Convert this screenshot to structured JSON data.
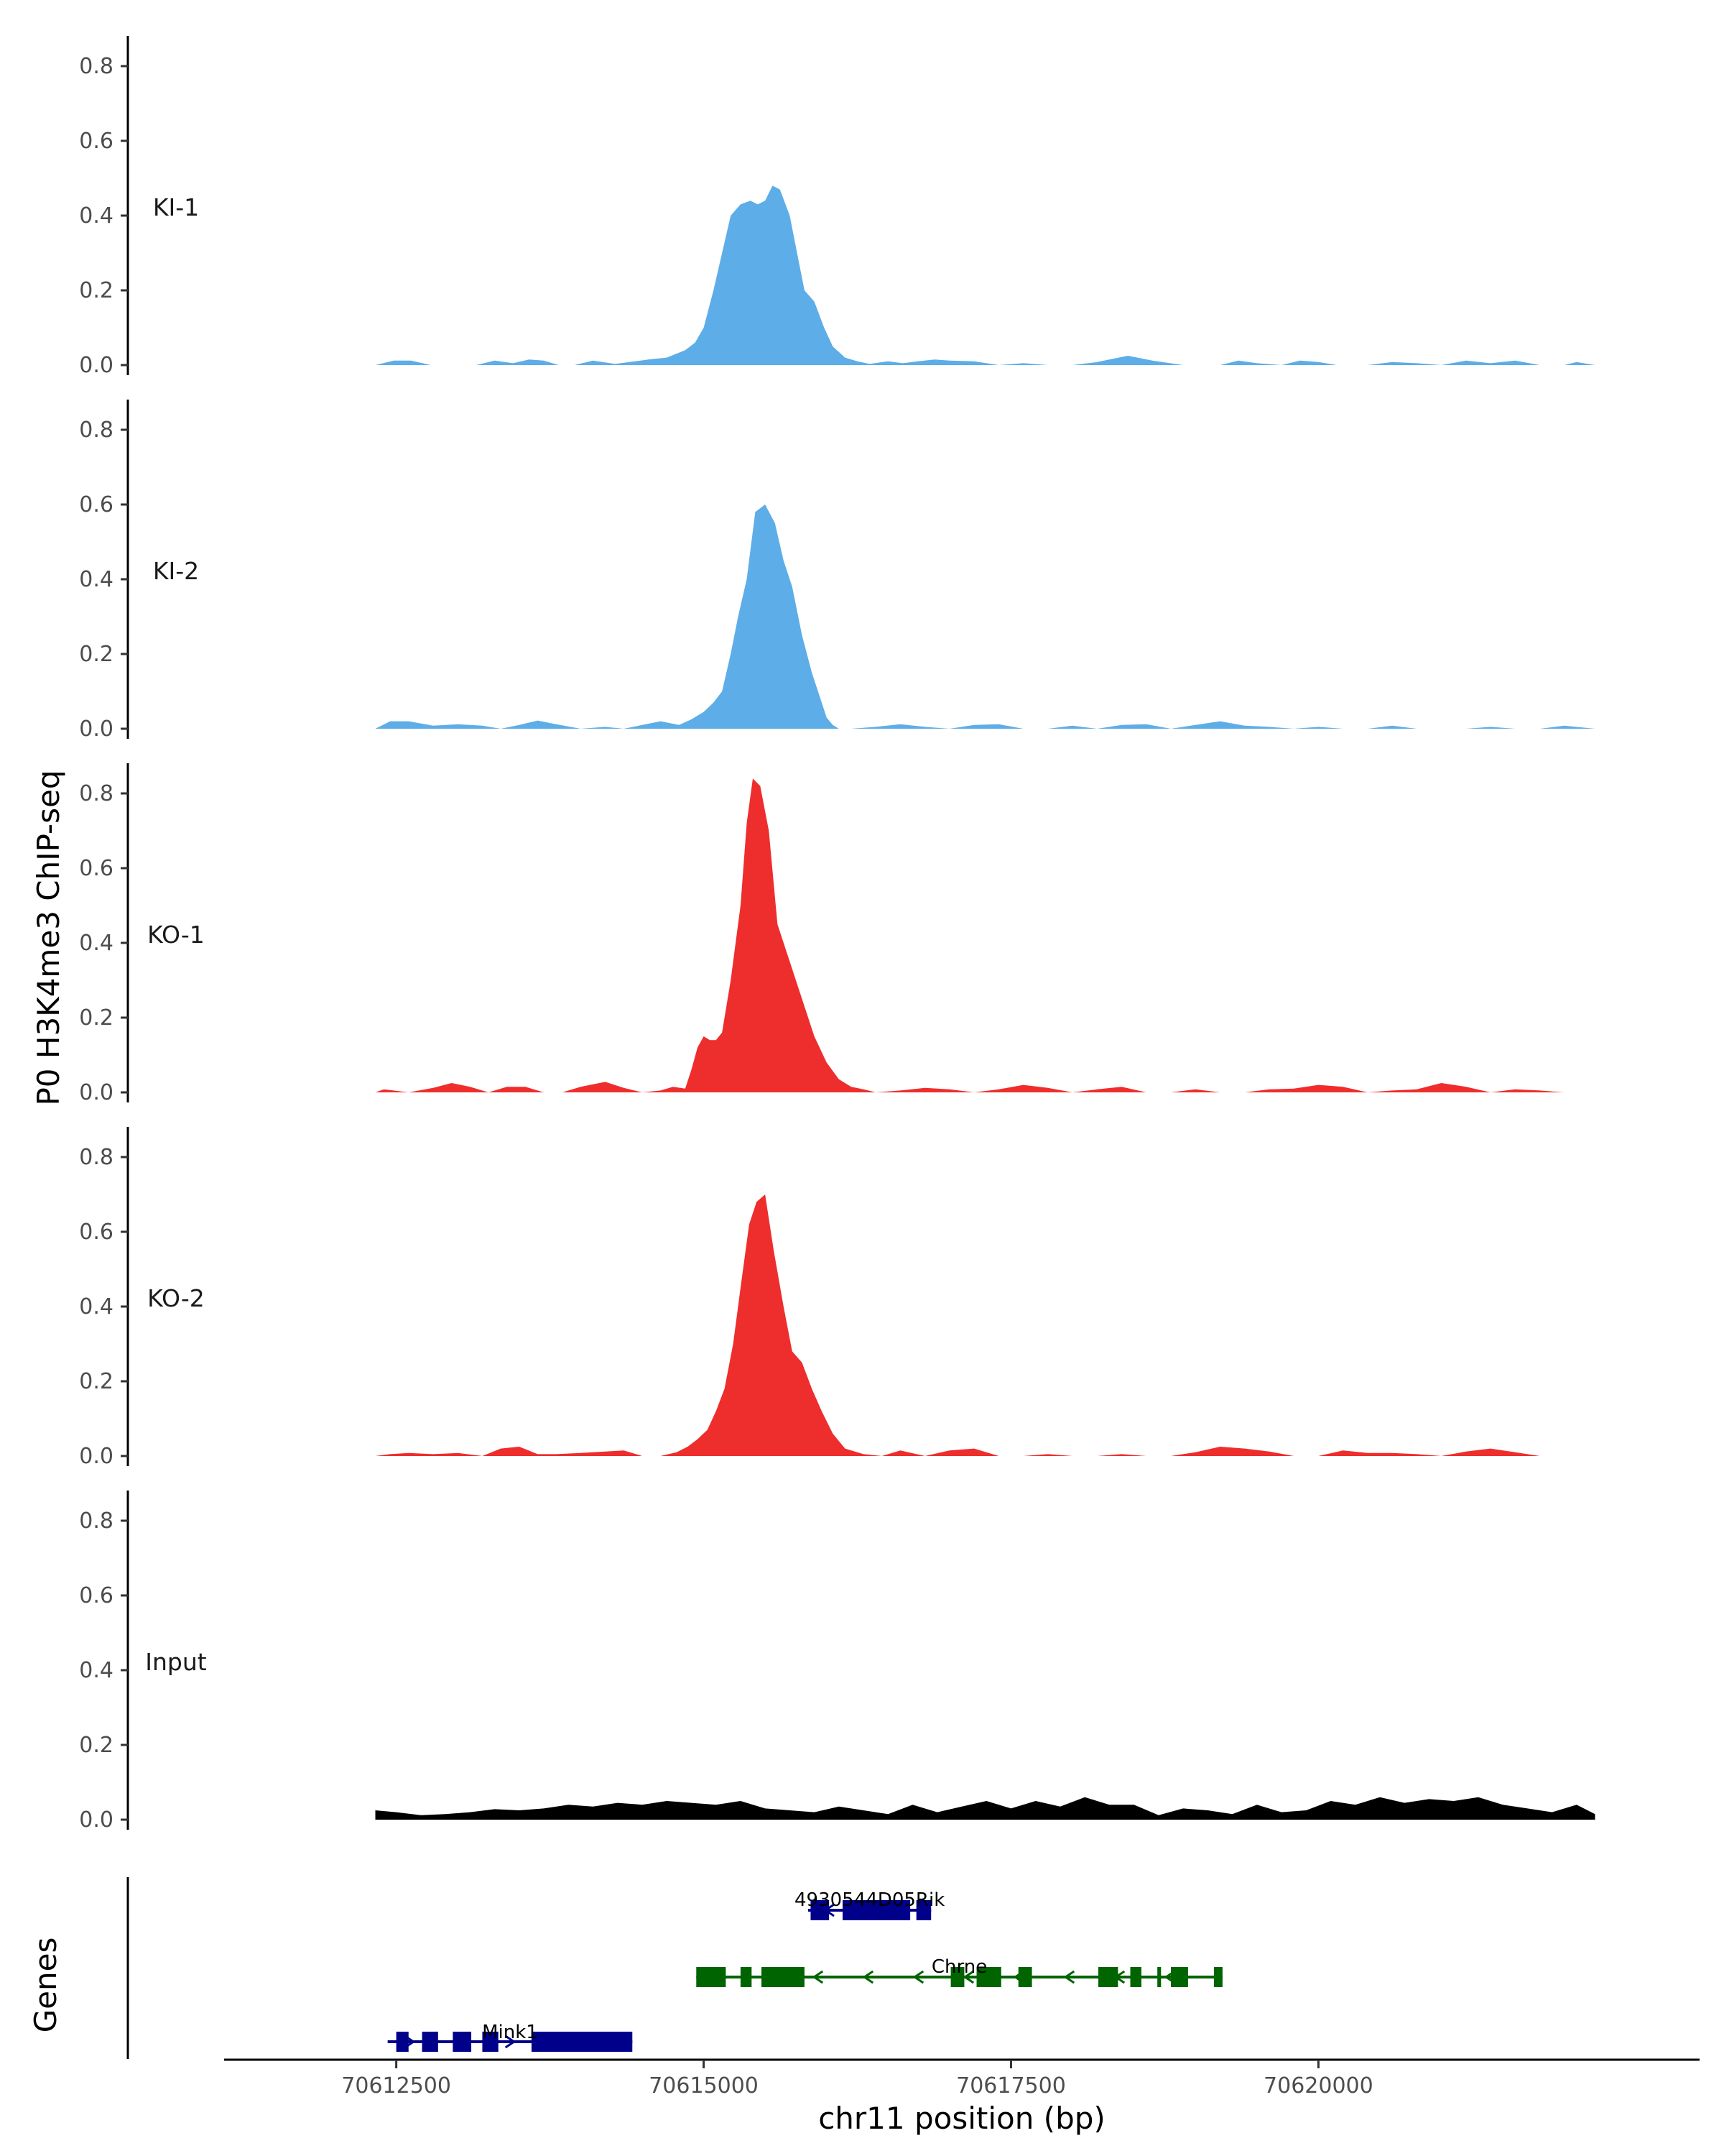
{
  "chart_data": {
    "type": "area",
    "ylabel": "P0 H3K4me3 ChIP-seq",
    "xlabel": "chr11 position (bp)",
    "xlim": [
      70611100,
      70623100
    ],
    "ylim": [
      0,
      0.88
    ],
    "y_ticks": [
      "0.0",
      "0.2",
      "0.4",
      "0.6",
      "0.8"
    ],
    "x_ticks": [
      {
        "value": 70612500,
        "label": "70612500"
      },
      {
        "value": 70615000,
        "label": "70615000"
      },
      {
        "value": 70617500,
        "label": "70617500"
      },
      {
        "value": 70620000,
        "label": "70620000"
      }
    ],
    "grid": false,
    "tracks": [
      {
        "name": "KI-1",
        "color": "#5dade8",
        "x": [
          70612330,
          70612480,
          70612620,
          70612780,
          70613150,
          70613300,
          70613450,
          70613580,
          70613700,
          70613820,
          70613950,
          70614100,
          70614280,
          70614440,
          70614550,
          70614700,
          70614850,
          70614930,
          70615000,
          70615080,
          70615150,
          70615220,
          70615300,
          70615380,
          70615440,
          70615500,
          70615560,
          70615620,
          70615700,
          70615760,
          70615820,
          70615900,
          70615980,
          70616050,
          70616150,
          70616250,
          70616350,
          70616500,
          70616620,
          70616740,
          70616880,
          70617000,
          70617200,
          70617400,
          70617600,
          70617800,
          70618000,
          70618200,
          70618300,
          70618450,
          70618650,
          70618900,
          70619200,
          70619350,
          70619500,
          70619700,
          70619850,
          70620000,
          70620150,
          70620400,
          70620600,
          70620800,
          70621000,
          70621200,
          70621400,
          70621600,
          70621800,
          70622000,
          70622100,
          70622250
        ],
        "y": [
          0,
          0.012,
          0.012,
          0,
          0,
          0.012,
          0.005,
          0.015,
          0.012,
          0,
          0,
          0.012,
          0.003,
          0.01,
          0.015,
          0.02,
          0.04,
          0.06,
          0.1,
          0.2,
          0.3,
          0.4,
          0.43,
          0.44,
          0.43,
          0.44,
          0.48,
          0.47,
          0.4,
          0.3,
          0.2,
          0.17,
          0.1,
          0.05,
          0.02,
          0.01,
          0.003,
          0.01,
          0.005,
          0.01,
          0.015,
          0.012,
          0.01,
          0,
          0.005,
          0,
          0,
          0.008,
          0.015,
          0.025,
          0.012,
          0,
          0,
          0.012,
          0.005,
          0,
          0.012,
          0.008,
          0,
          0,
          0.008,
          0.005,
          0,
          0.012,
          0.005,
          0.012,
          0,
          0,
          0.008,
          0
        ],
        "x_end_fill": 70622250
      },
      {
        "name": "KI-2",
        "color": "#5dade8",
        "x": [
          70612330,
          70612450,
          70612600,
          70612800,
          70613000,
          70613200,
          70613350,
          70613500,
          70613650,
          70613800,
          70614000,
          70614200,
          70614350,
          70614500,
          70614650,
          70614800,
          70614900,
          70615000,
          70615080,
          70615150,
          70615220,
          70615280,
          70615350,
          70615420,
          70615500,
          70615580,
          70615650,
          70615720,
          70615800,
          70615880,
          70615950,
          70616000,
          70616050,
          70616100,
          70616200,
          70616400,
          70616600,
          70616800,
          70617000,
          70617200,
          70617400,
          70617600,
          70617800,
          70618000,
          70618200,
          70618400,
          70618600,
          70618800,
          70619000,
          70619200,
          70619400,
          70619600,
          70619800,
          70620000,
          70620200,
          70620400,
          70620600,
          70620800,
          70621000,
          70621200,
          70621400,
          70621600,
          70621800,
          70622000,
          70622250
        ],
        "y": [
          0,
          0.02,
          0.02,
          0.008,
          0.012,
          0.008,
          0,
          0.01,
          0.022,
          0.012,
          0,
          0.005,
          0,
          0.01,
          0.02,
          0.01,
          0.025,
          0.045,
          0.07,
          0.1,
          0.2,
          0.3,
          0.4,
          0.58,
          0.6,
          0.55,
          0.45,
          0.38,
          0.25,
          0.15,
          0.08,
          0.03,
          0.01,
          0,
          0,
          0.005,
          0.012,
          0.005,
          0,
          0.01,
          0.012,
          0,
          0,
          0.008,
          0,
          0.01,
          0.012,
          0,
          0.01,
          0.02,
          0.008,
          0.005,
          0,
          0.005,
          0,
          0,
          0.008,
          0,
          0,
          0,
          0.005,
          0,
          0,
          0.008,
          0
        ],
        "x_end_fill": 70622250
      },
      {
        "name": "KO-1",
        "color": "#ee2d2d",
        "x": [
          70612330,
          70612400,
          70612600,
          70612800,
          70612950,
          70613100,
          70613250,
          70613400,
          70613550,
          70613700,
          70613850,
          70614000,
          70614200,
          70614350,
          70614500,
          70614650,
          70614750,
          70614850,
          70614900,
          70614950,
          70615000,
          70615050,
          70615100,
          70615150,
          70615220,
          70615300,
          70615350,
          70615400,
          70615460,
          70615530,
          70615600,
          70615700,
          70615800,
          70615900,
          70616000,
          70616100,
          70616200,
          70616300,
          70616400,
          70616600,
          70616800,
          70617000,
          70617200,
          70617400,
          70617600,
          70617800,
          70618000,
          70618200,
          70618400,
          70618600,
          70618800,
          70619000,
          70619200,
          70619400,
          70619600,
          70619800,
          70620000,
          70620200,
          70620400,
          70620600,
          70620800,
          70621000,
          70621200,
          70621400,
          70621600,
          70621800,
          70622000
        ],
        "y": [
          0,
          0.008,
          0,
          0.012,
          0.025,
          0.015,
          0,
          0.015,
          0.015,
          0,
          0,
          0.015,
          0.028,
          0.012,
          0,
          0.005,
          0.015,
          0.01,
          0.06,
          0.12,
          0.15,
          0.14,
          0.14,
          0.16,
          0.3,
          0.5,
          0.72,
          0.84,
          0.82,
          0.7,
          0.45,
          0.35,
          0.25,
          0.15,
          0.08,
          0.035,
          0.015,
          0.008,
          0,
          0.005,
          0.012,
          0.008,
          0,
          0.008,
          0.02,
          0.012,
          0,
          0.008,
          0.015,
          0,
          0,
          0.008,
          0,
          0,
          0.008,
          0.01,
          0.02,
          0.015,
          0,
          0.005,
          0.008,
          0.025,
          0.015,
          0,
          0.008,
          0.005,
          0
        ],
        "x_end_fill": 70622000
      },
      {
        "name": "KO-2",
        "color": "#ee2d2d",
        "x": [
          70612330,
          70612450,
          70612600,
          70612800,
          70613000,
          70613200,
          70613350,
          70613500,
          70613650,
          70613800,
          70614000,
          70614200,
          70614350,
          70614500,
          70614650,
          70614780,
          70614870,
          70614950,
          70615030,
          70615100,
          70615170,
          70615240,
          70615300,
          70615370,
          70615430,
          70615500,
          70615570,
          70615650,
          70615720,
          70615800,
          70615880,
          70615960,
          70616050,
          70616150,
          70616300,
          70616450,
          70616600,
          70616800,
          70617000,
          70617200,
          70617400,
          70617600,
          70617800,
          70618000,
          70618200,
          70618400,
          70618600,
          70618800,
          70619000,
          70619200,
          70619400,
          70619600,
          70619800,
          70620000,
          70620200,
          70620400,
          70620600,
          70620800,
          70621000,
          70621200,
          70621400,
          70621600,
          70621800
        ],
        "y": [
          0,
          0.005,
          0.008,
          0.005,
          0.008,
          0,
          0.02,
          0.025,
          0.005,
          0.005,
          0.008,
          0.012,
          0.015,
          0,
          0,
          0.01,
          0.025,
          0.045,
          0.07,
          0.12,
          0.18,
          0.3,
          0.45,
          0.62,
          0.68,
          0.7,
          0.55,
          0.4,
          0.28,
          0.25,
          0.18,
          0.12,
          0.06,
          0.02,
          0.005,
          0,
          0.015,
          0,
          0.015,
          0.02,
          0,
          0,
          0.005,
          0,
          0,
          0.005,
          0,
          0,
          0.01,
          0.025,
          0.02,
          0.012,
          0,
          0,
          0.015,
          0.008,
          0.008,
          0.005,
          0,
          0.012,
          0.02,
          0.01,
          0
        ],
        "x_end_fill": 70621800
      },
      {
        "name": "Input",
        "color": "#000000",
        "x": [
          70612330,
          70612500,
          70612700,
          70612900,
          70613100,
          70613300,
          70613500,
          70613700,
          70613900,
          70614100,
          70614300,
          70614500,
          70614700,
          70614900,
          70615100,
          70615300,
          70615500,
          70615700,
          70615900,
          70616100,
          70616300,
          70616500,
          70616700,
          70616900,
          70617100,
          70617300,
          70617500,
          70617700,
          70617900,
          70618100,
          70618300,
          70618500,
          70618700,
          70618900,
          70619100,
          70619300,
          70619500,
          70619700,
          70619900,
          70620100,
          70620300,
          70620500,
          70620700,
          70620900,
          70621100,
          70621300,
          70621500,
          70621700,
          70621900,
          70622100,
          70622250
        ],
        "y": [
          0.025,
          0.02,
          0.012,
          0.015,
          0.02,
          0.028,
          0.025,
          0.03,
          0.04,
          0.035,
          0.045,
          0.04,
          0.05,
          0.045,
          0.04,
          0.05,
          0.03,
          0.025,
          0.02,
          0.035,
          0.025,
          0.015,
          0.04,
          0.02,
          0.035,
          0.05,
          0.03,
          0.05,
          0.035,
          0.06,
          0.04,
          0.04,
          0.012,
          0.03,
          0.025,
          0.015,
          0.04,
          0.02,
          0.025,
          0.05,
          0.04,
          0.06,
          0.045,
          0.055,
          0.05,
          0.06,
          0.04,
          0.03,
          0.02,
          0.04,
          0.015
        ],
        "x_end_fill": 70622250
      }
    ],
    "genes_track": {
      "title": "Genes",
      "genes": [
        {
          "name": "4930544D05Rik",
          "color": "#00008b",
          "start": 70615850,
          "end": 70616850,
          "strand": "-",
          "row": 0,
          "exons": [
            [
              70615870,
              70616020
            ],
            [
              70616130,
              70616680
            ],
            [
              70616730,
              70616850
            ]
          ]
        },
        {
          "name": "Chrne",
          "color": "#006400",
          "start": 70614940,
          "end": 70619220,
          "strand": "-",
          "row": 1,
          "exons": [
            [
              70614940,
              70615180
            ],
            [
              70615300,
              70615390
            ],
            [
              70615470,
              70615820
            ],
            [
              70617010,
              70617120
            ],
            [
              70617220,
              70617420
            ],
            [
              70617560,
              70617670
            ],
            [
              70618210,
              70618370
            ],
            [
              70618470,
              70618560
            ],
            [
              70618690,
              70618720
            ],
            [
              70618800,
              70618940
            ],
            [
              70619150,
              70619220
            ]
          ]
        },
        {
          "name": "Mink1",
          "color": "#00008b",
          "start": 70612430,
          "end": 70614420,
          "strand": "+",
          "row": 2,
          "exons": [
            [
              70612500,
              70612600
            ],
            [
              70612710,
              70612840
            ],
            [
              70612960,
              70613110
            ],
            [
              70613200,
              70613330
            ],
            [
              70613600,
              70614420
            ]
          ]
        }
      ]
    }
  }
}
